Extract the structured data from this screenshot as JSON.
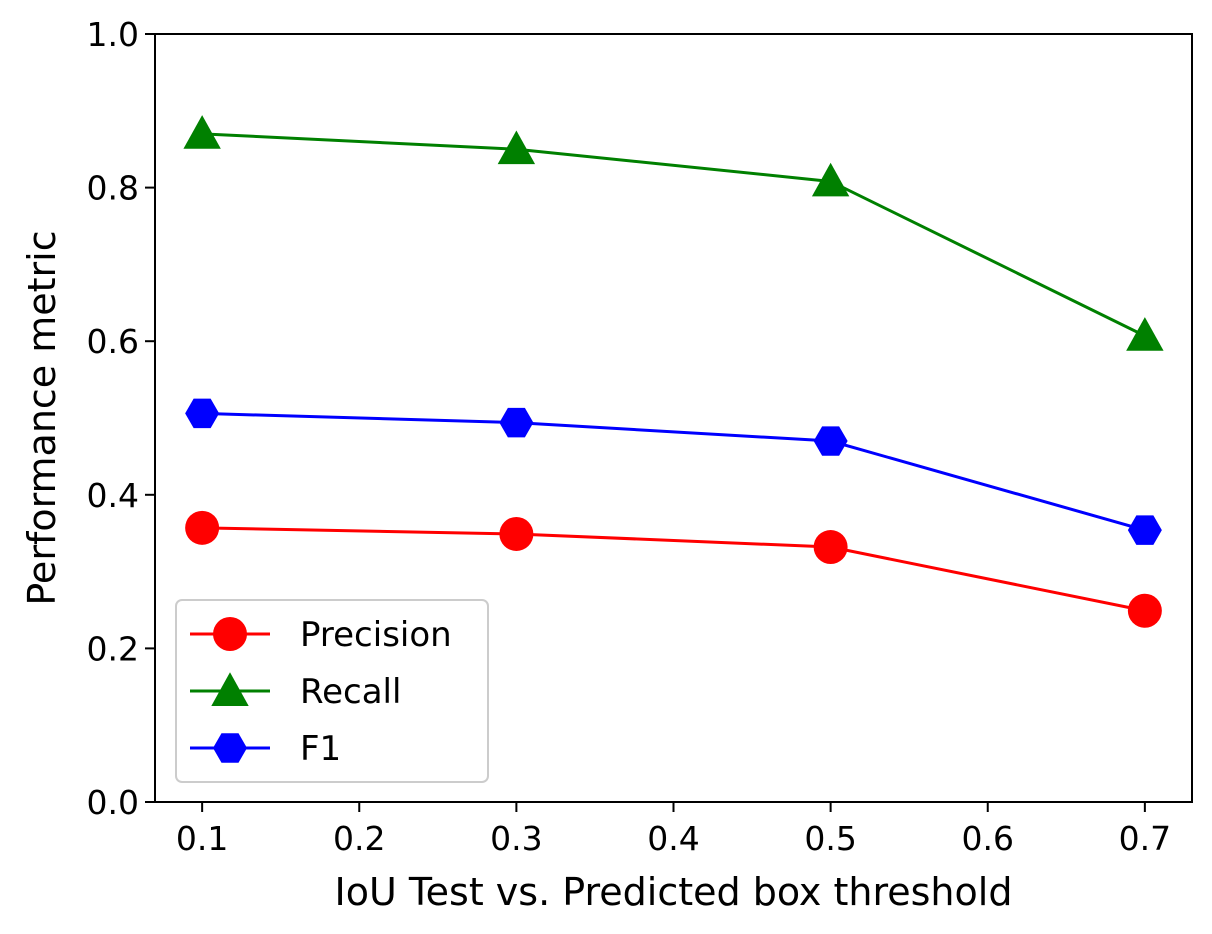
{
  "chart_data": {
    "type": "line",
    "title": "",
    "xlabel": "IoU Test vs. Predicted box threshold",
    "ylabel": "Performance metric",
    "x": [
      0.1,
      0.3,
      0.5,
      0.7
    ],
    "xlim": [
      0.07,
      0.73
    ],
    "ylim": [
      0.0,
      1.0
    ],
    "xticks": [
      "0.1",
      "0.2",
      "0.3",
      "0.4",
      "0.5",
      "0.6",
      "0.7"
    ],
    "yticks": [
      "0.0",
      "0.2",
      "0.4",
      "0.6",
      "0.8",
      "1.0"
    ],
    "grid": false,
    "legend_position": "lower-left",
    "series": [
      {
        "name": "Precision",
        "values": [
          0.357,
          0.349,
          0.332,
          0.249
        ],
        "color": "#ff0000",
        "marker": "circle"
      },
      {
        "name": "Recall",
        "values": [
          0.87,
          0.85,
          0.808,
          0.607
        ],
        "color": "#008000",
        "marker": "triangle"
      },
      {
        "name": "F1",
        "values": [
          0.506,
          0.494,
          0.47,
          0.354
        ],
        "color": "#0000ff",
        "marker": "hexagon"
      }
    ]
  }
}
